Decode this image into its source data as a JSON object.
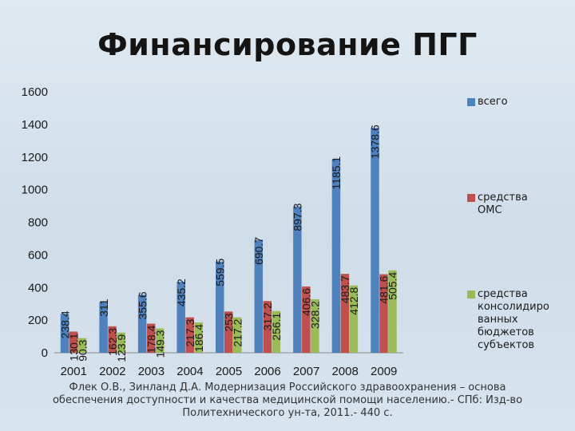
{
  "title": "Финансирование ПГГ",
  "chart_data": {
    "type": "bar",
    "title": "Финансирование ПГГ",
    "categories": [
      "2001",
      "2002",
      "2003",
      "2004",
      "2005",
      "2006",
      "2007",
      "2008",
      "2009"
    ],
    "series": [
      {
        "name": "всего",
        "color": "#4f81bd",
        "values": [
          238.4,
          311,
          355.6,
          435.2,
          559.5,
          690.7,
          897.3,
          1185.1,
          1378.6
        ],
        "labels": [
          "238.4",
          "311",
          "355.6",
          "435.2",
          "559.5",
          "690.7",
          "897.3",
          "1185.1",
          "1378.6"
        ]
      },
      {
        "name": "средства ОМС",
        "color": "#c0504d",
        "values": [
          130.1,
          162.3,
          178.4,
          217.3,
          253,
          317.2,
          406.6,
          483.7,
          481.6
        ],
        "labels": [
          "130.1",
          "162.3",
          "178.4",
          "217.3",
          "253",
          "317.2",
          "406.6",
          "483.7",
          "481.6"
        ]
      },
      {
        "name": "средства консолидированных бюджетов субъектов",
        "color": "#9bbb59",
        "values": [
          90.3,
          123.9,
          149.3,
          186.4,
          217.2,
          256.1,
          328.2,
          412.8,
          505.4
        ],
        "labels": [
          "90.3",
          "123.9",
          "149.3",
          "186.4",
          "217.2",
          "256.1",
          "328.2",
          "412.8",
          "505.4"
        ]
      }
    ],
    "yticks": [
      0,
      200,
      400,
      600,
      800,
      1000,
      1200,
      1400,
      1600
    ],
    "ylim": [
      0,
      1600
    ],
    "xlabel": "",
    "ylabel": "",
    "legend": "right"
  },
  "legend": {
    "items": [
      {
        "text": "всего",
        "lines": [
          "всего"
        ]
      },
      {
        "text": "средства ОМС",
        "lines": [
          "средства",
          "ОМС"
        ]
      },
      {
        "text": "средства консолидированных бюджетов субъектов",
        "lines": [
          "средства",
          "консолидиро",
          "ванных",
          "бюджетов",
          "субъектов"
        ]
      }
    ]
  },
  "footer": {
    "line1": "Флек О.В., Зинланд Д.А. Модернизация Российского здравоохранения – основа",
    "line2": "обеспечения доступности и качества медицинской помощи населению.- СПб: Изд-во",
    "line3": "Политехнического ун-та, 2011.- 440 с."
  }
}
